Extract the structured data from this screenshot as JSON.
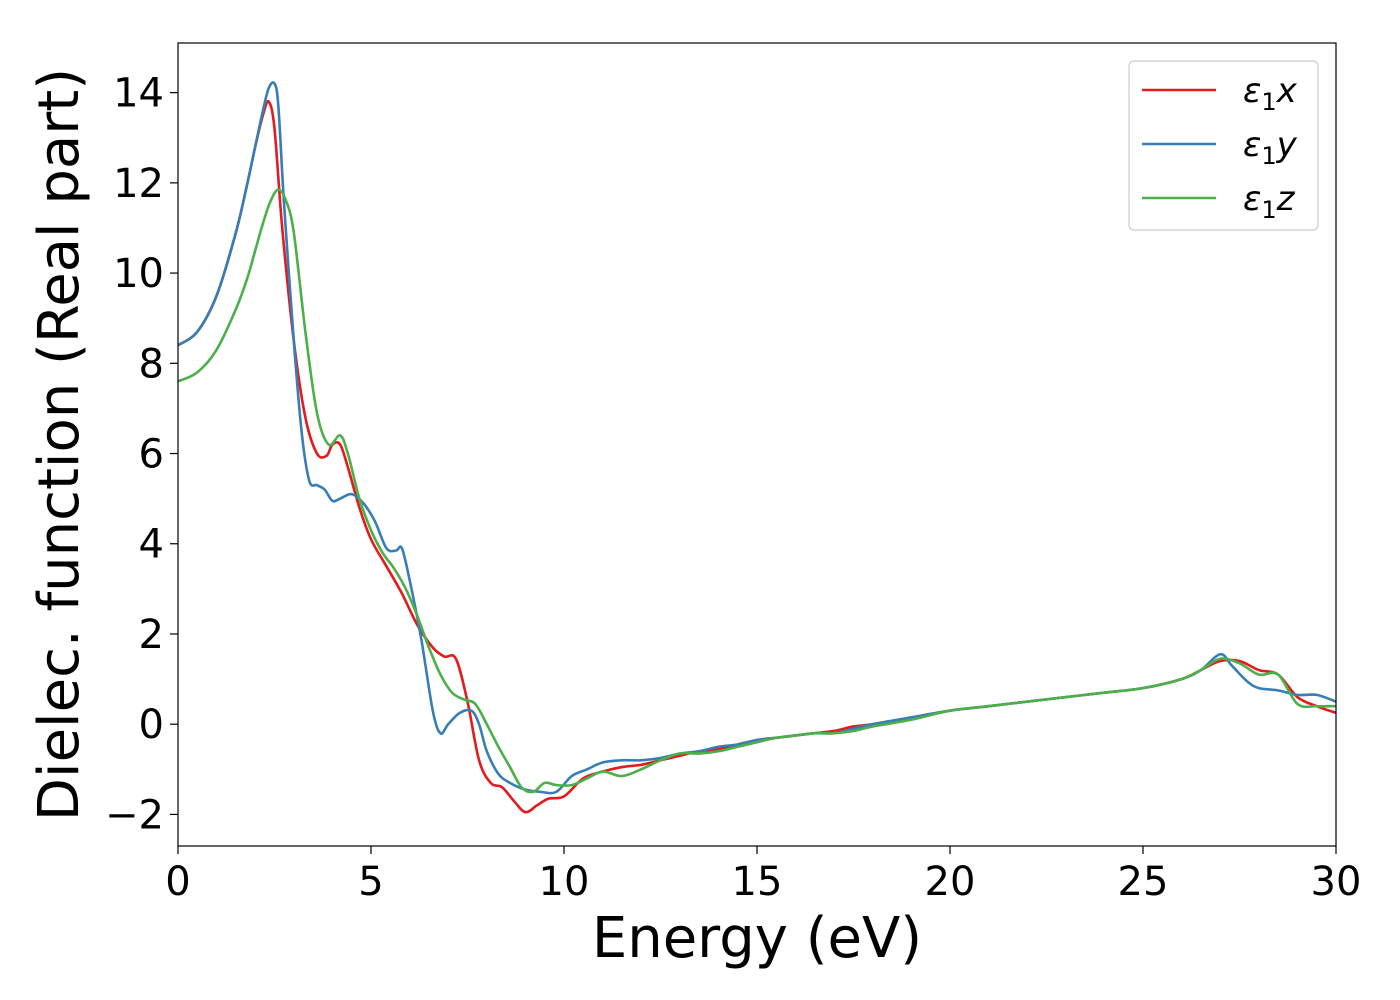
{
  "chart_data": {
    "type": "line",
    "title": "",
    "xlabel": "Energy (eV)",
    "ylabel": "Dielec. function (Real part)",
    "xlim": [
      0,
      30
    ],
    "ylim": [
      -2.7,
      15.1
    ],
    "xticks": [
      0,
      5,
      10,
      15,
      20,
      25,
      30
    ],
    "yticks": [
      -2,
      0,
      2,
      4,
      6,
      8,
      10,
      12,
      14
    ],
    "xtick_labels": [
      "0",
      "5",
      "10",
      "15",
      "20",
      "25",
      "30"
    ],
    "ytick_labels": [
      "−2",
      "0",
      "2",
      "4",
      "6",
      "8",
      "10",
      "12",
      "14"
    ],
    "grid": false,
    "legend_position": "top-right",
    "series": [
      {
        "name": "ε1x",
        "name_main": "ε",
        "name_sub": "1",
        "name_tail": "x",
        "color": "#e41a1c",
        "x": [
          0,
          0.5,
          1.0,
          1.5,
          1.8,
          2.0,
          2.2,
          2.35,
          2.5,
          2.7,
          3.0,
          3.3,
          3.6,
          3.85,
          4.0,
          4.2,
          4.4,
          4.7,
          5.0,
          5.4,
          5.8,
          6.2,
          6.6,
          6.9,
          7.2,
          7.5,
          7.8,
          8.1,
          8.4,
          8.7,
          9.0,
          9.3,
          9.6,
          10.0,
          10.5,
          11.0,
          11.5,
          12.0,
          12.5,
          13.0,
          13.5,
          14.0,
          14.5,
          15.0,
          15.5,
          16.0,
          16.5,
          17.0,
          17.5,
          18.0,
          19.0,
          20.0,
          21.0,
          22.0,
          23.0,
          24.0,
          25.0,
          26.0,
          26.5,
          27.0,
          27.5,
          28.0,
          28.5,
          29.0,
          29.5,
          30.0
        ],
        "values": [
          8.4,
          8.7,
          9.5,
          10.9,
          12.0,
          12.8,
          13.5,
          13.8,
          13.2,
          11.0,
          8.5,
          6.8,
          6.0,
          5.95,
          6.2,
          6.2,
          5.7,
          4.8,
          4.1,
          3.5,
          2.9,
          2.2,
          1.7,
          1.5,
          1.45,
          0.5,
          -0.8,
          -1.3,
          -1.4,
          -1.7,
          -1.95,
          -1.8,
          -1.65,
          -1.6,
          -1.2,
          -1.05,
          -0.95,
          -0.9,
          -0.8,
          -0.7,
          -0.6,
          -0.55,
          -0.45,
          -0.35,
          -0.3,
          -0.25,
          -0.2,
          -0.15,
          -0.05,
          0.0,
          0.15,
          0.3,
          0.4,
          0.5,
          0.6,
          0.7,
          0.8,
          1.0,
          1.2,
          1.4,
          1.4,
          1.2,
          1.1,
          0.6,
          0.4,
          0.25
        ]
      },
      {
        "name": "ε1y",
        "name_main": "ε",
        "name_sub": "1",
        "name_tail": "y",
        "color": "#377eb8",
        "x": [
          0,
          0.5,
          1.0,
          1.5,
          1.8,
          2.0,
          2.2,
          2.35,
          2.5,
          2.6,
          2.75,
          3.0,
          3.2,
          3.4,
          3.6,
          3.8,
          4.0,
          4.2,
          4.5,
          4.8,
          5.1,
          5.4,
          5.65,
          5.8,
          6.0,
          6.3,
          6.6,
          6.8,
          7.0,
          7.3,
          7.6,
          7.8,
          8.0,
          8.3,
          8.6,
          9.0,
          9.4,
          9.8,
          10.2,
          10.6,
          11.0,
          11.5,
          12.0,
          12.5,
          13.0,
          13.5,
          14.0,
          14.5,
          15.0,
          15.5,
          16.0,
          16.5,
          17.0,
          17.5,
          18.0,
          19.0,
          20.0,
          21.0,
          22.0,
          23.0,
          24.0,
          25.0,
          26.0,
          26.5,
          27.0,
          27.3,
          27.7,
          28.0,
          28.5,
          29.0,
          29.5,
          30.0
        ],
        "values": [
          8.4,
          8.7,
          9.5,
          10.9,
          12.0,
          12.8,
          13.6,
          14.1,
          14.2,
          13.7,
          11.5,
          8.5,
          6.5,
          5.4,
          5.3,
          5.2,
          4.95,
          5.0,
          5.1,
          4.9,
          4.5,
          3.9,
          3.85,
          3.9,
          3.2,
          1.9,
          0.3,
          -0.2,
          0.0,
          0.25,
          0.3,
          0.0,
          -0.6,
          -1.1,
          -1.3,
          -1.45,
          -1.5,
          -1.5,
          -1.15,
          -1.0,
          -0.85,
          -0.8,
          -0.8,
          -0.75,
          -0.65,
          -0.6,
          -0.5,
          -0.45,
          -0.35,
          -0.3,
          -0.25,
          -0.2,
          -0.2,
          -0.1,
          0.0,
          0.15,
          0.3,
          0.4,
          0.5,
          0.6,
          0.7,
          0.8,
          1.0,
          1.2,
          1.55,
          1.3,
          0.95,
          0.8,
          0.75,
          0.65,
          0.65,
          0.5
        ]
      },
      {
        "name": "ε1z",
        "name_main": "ε",
        "name_sub": "1",
        "name_tail": "z",
        "color": "#4daf4a",
        "x": [
          0,
          0.5,
          1.0,
          1.5,
          1.8,
          2.0,
          2.2,
          2.4,
          2.6,
          2.8,
          3.0,
          3.3,
          3.6,
          3.9,
          4.2,
          4.4,
          4.7,
          5.0,
          5.3,
          5.6,
          5.9,
          6.2,
          6.5,
          6.8,
          7.1,
          7.4,
          7.7,
          8.0,
          8.3,
          8.6,
          8.9,
          9.2,
          9.5,
          9.8,
          10.2,
          10.6,
          11.0,
          11.5,
          12.0,
          12.5,
          13.0,
          13.5,
          14.0,
          14.5,
          15.0,
          15.5,
          16.0,
          16.5,
          17.0,
          17.5,
          18.0,
          19.0,
          20.0,
          21.0,
          22.0,
          23.0,
          24.0,
          25.0,
          26.0,
          26.5,
          27.0,
          27.5,
          28.0,
          28.5,
          29.0,
          29.5,
          30.0
        ],
        "values": [
          7.6,
          7.8,
          8.3,
          9.2,
          9.9,
          10.5,
          11.1,
          11.6,
          11.85,
          11.6,
          10.9,
          8.7,
          6.9,
          6.2,
          6.4,
          6.0,
          5.0,
          4.3,
          3.8,
          3.45,
          3.0,
          2.4,
          1.7,
          1.1,
          0.7,
          0.55,
          0.45,
          0.0,
          -0.5,
          -0.95,
          -1.4,
          -1.5,
          -1.3,
          -1.35,
          -1.35,
          -1.2,
          -1.05,
          -1.15,
          -1.0,
          -0.8,
          -0.65,
          -0.65,
          -0.6,
          -0.5,
          -0.4,
          -0.3,
          -0.25,
          -0.2,
          -0.2,
          -0.15,
          -0.05,
          0.1,
          0.3,
          0.4,
          0.5,
          0.6,
          0.7,
          0.8,
          1.0,
          1.2,
          1.45,
          1.35,
          1.1,
          1.1,
          0.45,
          0.4,
          0.4
        ]
      }
    ]
  }
}
